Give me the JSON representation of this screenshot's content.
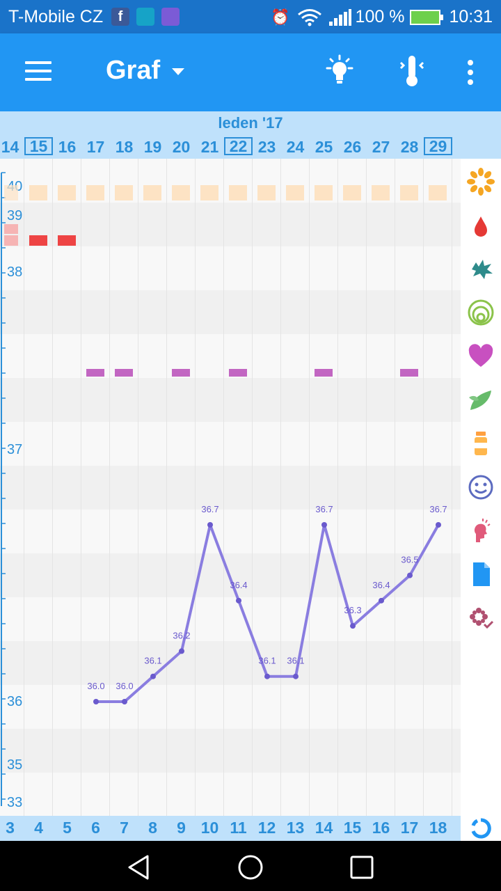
{
  "status_bar": {
    "carrier": "T-Mobile CZ",
    "fb_letter": "f",
    "battery_text": "100 %",
    "time": "10:31"
  },
  "app_bar": {
    "title": "Graf",
    "icons": [
      "menu-icon",
      "lightbulb-icon",
      "thermometer-icon",
      "more-vert-icon"
    ]
  },
  "month": "leden '17",
  "days": [
    {
      "label": "14",
      "boxed": false
    },
    {
      "label": "15",
      "boxed": true
    },
    {
      "label": "16",
      "boxed": false
    },
    {
      "label": "17",
      "boxed": false
    },
    {
      "label": "18",
      "boxed": false
    },
    {
      "label": "19",
      "boxed": false
    },
    {
      "label": "20",
      "boxed": false
    },
    {
      "label": "21",
      "boxed": false
    },
    {
      "label": "22",
      "boxed": true
    },
    {
      "label": "23",
      "boxed": false
    },
    {
      "label": "24",
      "boxed": false
    },
    {
      "label": "25",
      "boxed": false
    },
    {
      "label": "26",
      "boxed": false
    },
    {
      "label": "27",
      "boxed": false
    },
    {
      "label": "28",
      "boxed": false
    },
    {
      "label": "29",
      "boxed": true
    }
  ],
  "cycle_days": [
    "3",
    "4",
    "5",
    "6",
    "7",
    "8",
    "9",
    "10",
    "11",
    "12",
    "13",
    "14",
    "15",
    "16",
    "17",
    "18"
  ],
  "y_axis_labels": [
    "40",
    "39",
    "38",
    "37",
    "36",
    "35",
    "33"
  ],
  "chart_data": {
    "type": "line",
    "x": [
      "17",
      "18",
      "19",
      "20",
      "21",
      "22",
      "23",
      "24",
      "25",
      "26",
      "27",
      "28",
      "29"
    ],
    "values": [
      36.0,
      36.0,
      36.1,
      36.2,
      36.7,
      36.4,
      36.1,
      36.1,
      36.7,
      36.3,
      36.4,
      36.5,
      36.7
    ],
    "point_labels": [
      "36.0",
      "36.0",
      "36.1",
      "36.2",
      "36.7",
      "36.4",
      "36.1",
      "36.1",
      "36.7",
      "36.3",
      "36.4",
      "36.5",
      "36.7"
    ],
    "series_color": "#8a7de0",
    "marker_rows": {
      "orange_days": [
        "15",
        "16",
        "17",
        "18",
        "19",
        "20",
        "21",
        "22",
        "23",
        "24",
        "25",
        "26",
        "27",
        "28",
        "29"
      ],
      "red_days": [
        "15",
        "16"
      ],
      "purple_days": [
        "17",
        "18",
        "20",
        "22",
        "25",
        "28"
      ]
    },
    "colors": {
      "orange": "#fde3c4",
      "red": "#ee4444",
      "purple": "#c266c2"
    }
  },
  "sidebar_icons": [
    "sun-icon",
    "blood-drop-icon",
    "splash-icon",
    "cervix-icon",
    "heart-icon",
    "leaf-icon",
    "medicine-bottle-icon",
    "smiley-icon",
    "pain-icon",
    "document-icon",
    "flower-check-icon"
  ],
  "nav_icons": [
    "back-icon",
    "home-icon",
    "recents-icon"
  ]
}
